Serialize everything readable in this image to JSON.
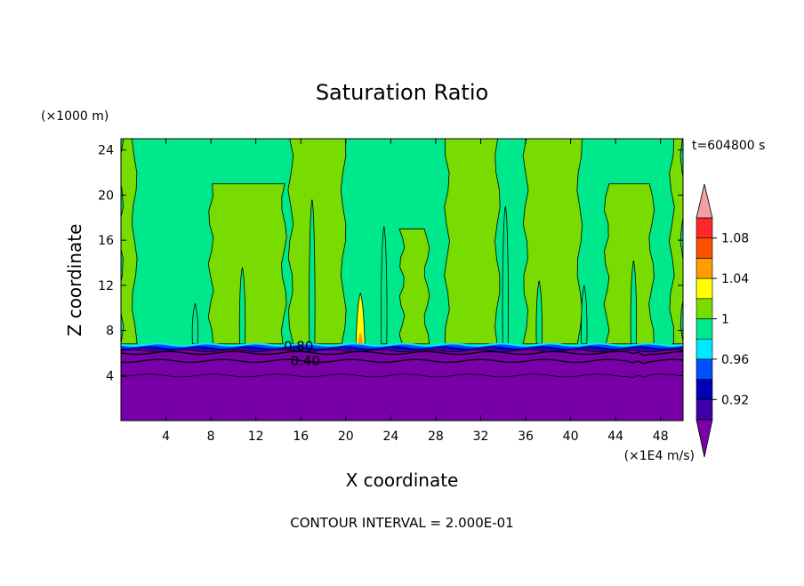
{
  "chart_data": {
    "type": "heatmap",
    "title": "Saturation Ratio",
    "xlabel": "X coordinate",
    "ylabel": "Z coordinate",
    "x_unit": "(×1E4 m/s)",
    "y_unit": "(×1000 m)",
    "time_label": "t=604800 s",
    "footer": "CONTOUR INTERVAL = 2.000E-01",
    "xlim": [
      0,
      50
    ],
    "ylim": [
      0,
      25
    ],
    "x_ticks": [
      4,
      8,
      12,
      16,
      20,
      24,
      28,
      32,
      36,
      40,
      44,
      48
    ],
    "y_ticks": [
      4,
      8,
      12,
      16,
      20,
      24
    ],
    "contour_labels": [
      {
        "text": "0.80",
        "x": 15.8,
        "y": 6.6
      },
      {
        "text": "0.40",
        "x": 16.4,
        "y": 5.3
      }
    ],
    "colorbar": {
      "tick_labels": [
        "1.08",
        "1.04",
        "1",
        "0.96",
        "0.92"
      ],
      "tick_values": [
        1.08,
        1.04,
        1.0,
        0.96,
        0.92
      ],
      "levels": [
        {
          "from": 0.9,
          "to": 0.92,
          "color": "#3f00a8"
        },
        {
          "from": 0.92,
          "to": 0.94,
          "color": "#0000b4"
        },
        {
          "from": 0.94,
          "to": 0.96,
          "color": "#0050ff"
        },
        {
          "from": 0.96,
          "to": 0.98,
          "color": "#00e8ff"
        },
        {
          "from": 0.98,
          "to": 1.0,
          "color": "#00e88c"
        },
        {
          "from": 1.0,
          "to": 1.02,
          "color": "#78dc00"
        },
        {
          "from": 1.02,
          "to": 1.04,
          "color": "#ffff00"
        },
        {
          "from": 1.04,
          "to": 1.06,
          "color": "#ff9c00"
        },
        {
          "from": 1.06,
          "to": 1.08,
          "color": "#ff5000"
        },
        {
          "from": 1.08,
          "to": 1.1,
          "color": "#ff2828"
        }
      ],
      "under_color": "#7800a8",
      "over_color": "#f0a0a0"
    },
    "background_regime": {
      "lower_layer": {
        "z_top": 6.8,
        "color": "#7800a8"
      },
      "base_field_color": "#00e88c",
      "supersaturated_bands_color": "#78dc00",
      "supersaturated_bands_x": [
        [
          0,
          1.2
        ],
        [
          8.0,
          14.5
        ],
        [
          15.1,
          19.8
        ],
        [
          25.0,
          27.2
        ],
        [
          29.0,
          33.5
        ],
        [
          36.0,
          40.8
        ],
        [
          43.2,
          47.2
        ],
        [
          49.0,
          50
        ]
      ],
      "supersaturated_band_z_top": [
        25,
        21,
        25,
        17,
        25,
        25,
        21,
        25
      ],
      "peak": {
        "x": 21.3,
        "z_top": 11.3,
        "color": "#ffff00"
      }
    }
  }
}
